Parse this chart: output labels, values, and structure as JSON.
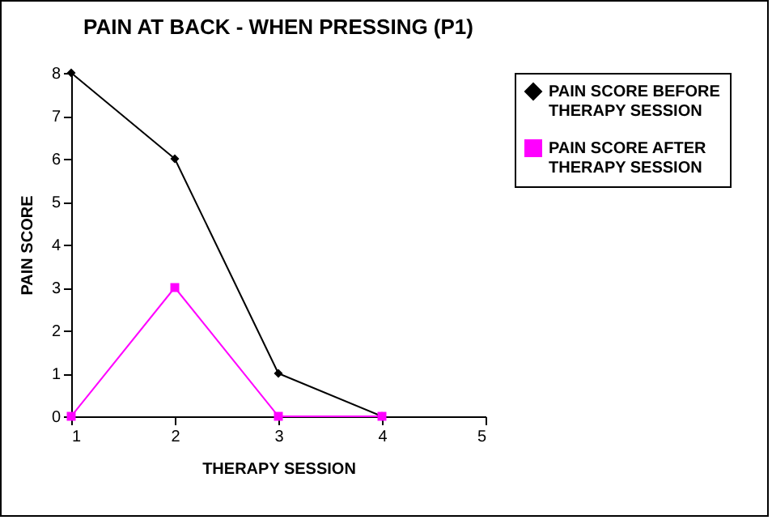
{
  "chart_data": {
    "type": "line",
    "title": "PAIN AT BACK - WHEN PRESSING (P1)",
    "xlabel": "THERAPY SESSION",
    "ylabel": "PAIN SCORE",
    "x": [
      1,
      2,
      3,
      4
    ],
    "xlim": [
      1,
      5
    ],
    "xticks": [
      1,
      2,
      3,
      4,
      5
    ],
    "ylim": [
      0,
      8
    ],
    "yticks": [
      0,
      1,
      2,
      3,
      4,
      5,
      6,
      7,
      8
    ],
    "grid": false,
    "legend": "right",
    "line_style": "solid",
    "series": [
      {
        "name": "PAIN SCORE BEFORE THERAPY SESSION",
        "color": "#000000",
        "marker": "diamond",
        "values": [
          8,
          6,
          1,
          0
        ]
      },
      {
        "name": "PAIN SCORE AFTER THERAPY SESSION",
        "color": "#ff00ff",
        "marker": "square",
        "values": [
          0,
          3,
          0,
          0
        ]
      }
    ]
  }
}
